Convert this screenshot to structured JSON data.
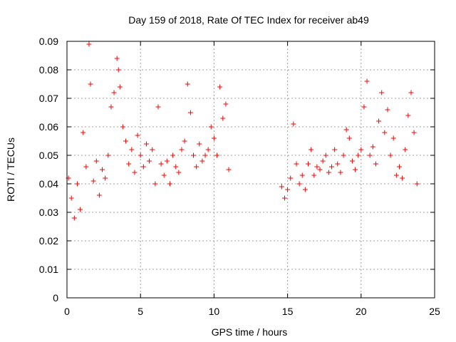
{
  "chart_data": {
    "type": "scatter",
    "title": "Day 159 of 2018, Rate Of TEC Index for receiver ab49",
    "xlabel": "GPS time / hours",
    "ylabel": "ROTI / TECUs",
    "xlim": [
      0,
      25
    ],
    "ylim": [
      0,
      0.09
    ],
    "x_ticks": [
      "0",
      "5",
      "10",
      "15",
      "20",
      "25"
    ],
    "y_ticks": [
      "0",
      "0.01",
      "0.02",
      "0.03",
      "0.04",
      "0.05",
      "0.06",
      "0.07",
      "0.08",
      "0.09"
    ],
    "grid": true,
    "marker": "+",
    "series": [
      {
        "color": "#ff0000",
        "x": [
          0.1,
          0.3,
          0.5,
          0.7,
          0.9,
          1.1,
          1.3,
          1.5,
          1.6,
          1.8,
          2.0,
          2.2,
          2.4,
          2.6,
          2.8,
          3.0,
          3.2,
          3.4,
          3.5,
          3.6,
          3.8,
          4.0,
          4.2,
          4.4,
          4.6,
          4.8,
          5.0,
          5.2,
          5.4,
          5.6,
          5.8,
          6.0,
          6.2,
          6.4,
          6.6,
          6.8,
          7.0,
          7.2,
          7.4,
          7.6,
          7.8,
          8.0,
          8.2,
          8.4,
          8.6,
          8.8,
          9.0,
          9.2,
          9.4,
          9.6,
          9.8,
          10.0,
          10.2,
          10.4,
          10.6,
          10.8,
          11.0,
          14.6,
          14.8,
          15.0,
          15.2,
          15.4,
          15.6,
          15.8,
          16.0,
          16.2,
          16.4,
          16.6,
          16.8,
          17.0,
          17.2,
          17.4,
          17.6,
          17.8,
          18.0,
          18.2,
          18.4,
          18.6,
          18.8,
          19.0,
          19.2,
          19.4,
          19.6,
          19.8,
          20.0,
          20.2,
          20.4,
          20.6,
          20.8,
          21.0,
          21.2,
          21.4,
          21.6,
          21.8,
          22.0,
          22.2,
          22.4,
          22.6,
          22.8,
          23.0,
          23.2,
          23.4,
          23.6,
          23.8
        ],
        "y": [
          0.042,
          0.035,
          0.028,
          0.04,
          0.031,
          0.058,
          0.046,
          0.089,
          0.075,
          0.041,
          0.048,
          0.036,
          0.045,
          0.042,
          0.05,
          0.067,
          0.072,
          0.084,
          0.08,
          0.074,
          0.06,
          0.055,
          0.047,
          0.052,
          0.044,
          0.057,
          0.05,
          0.046,
          0.054,
          0.048,
          0.052,
          0.04,
          0.067,
          0.047,
          0.043,
          0.048,
          0.04,
          0.05,
          0.046,
          0.044,
          0.052,
          0.055,
          0.075,
          0.065,
          0.05,
          0.046,
          0.054,
          0.048,
          0.05,
          0.052,
          0.06,
          0.056,
          0.05,
          0.074,
          0.063,
          0.068,
          0.045,
          0.039,
          0.035,
          0.038,
          0.042,
          0.061,
          0.047,
          0.04,
          0.043,
          0.038,
          0.047,
          0.052,
          0.043,
          0.046,
          0.045,
          0.048,
          0.05,
          0.044,
          0.046,
          0.052,
          0.047,
          0.044,
          0.05,
          0.059,
          0.056,
          0.048,
          0.045,
          0.05,
          0.052,
          0.067,
          0.076,
          0.05,
          0.053,
          0.047,
          0.062,
          0.072,
          0.058,
          0.066,
          0.05,
          0.056,
          0.043,
          0.046,
          0.042,
          0.052,
          0.064,
          0.072,
          0.058,
          0.04
        ]
      }
    ]
  }
}
